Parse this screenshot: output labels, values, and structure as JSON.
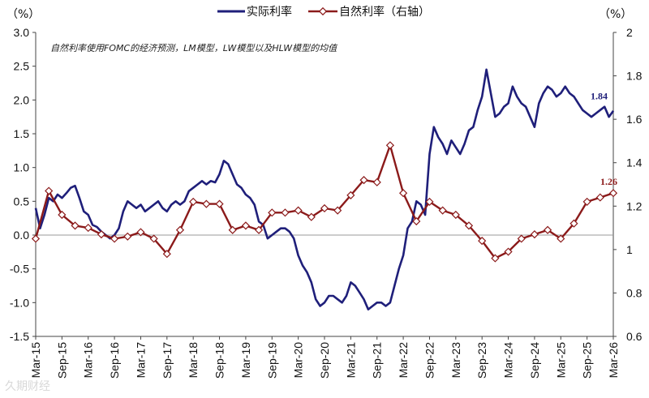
{
  "chart_data": {
    "type": "line",
    "left_unit": "（%）",
    "right_unit": "（%）",
    "note": "自然利率使用FOMC的经济预测，LM模型，LW模型以及HLW模型的均值",
    "x_ticks": [
      "Mar-15",
      "Sep-15",
      "Mar-16",
      "Sep-16",
      "Mar-17",
      "Sep-17",
      "Mar-18",
      "Sep-18",
      "Mar-19",
      "Sep-19",
      "Mar-20",
      "Sep-20",
      "Mar-21",
      "Sep-21",
      "Mar-22",
      "Sep-22",
      "Mar-23",
      "Sep-23",
      "Mar-24",
      "Sep-24",
      "Mar-25",
      "Sep-25",
      "Mar-26"
    ],
    "y_left": {
      "min": -1.5,
      "max": 3.0,
      "ticks": [
        "-1.5",
        "-1.0",
        "-0.5",
        "0.0",
        "0.5",
        "1.0",
        "1.5",
        "2.0",
        "2.5",
        "3.0"
      ],
      "negative_color": "#c00000"
    },
    "y_right": {
      "min": 0.6,
      "max": 2.0,
      "ticks": [
        "0.6",
        "0.8",
        "1",
        "1.2",
        "1.4",
        "1.6",
        "1.8",
        "2"
      ]
    },
    "grid": false,
    "legend_position": "top-center",
    "series": [
      {
        "name": "实际利率",
        "axis": "left",
        "color": "#1f1f7a",
        "end_label": "1.84",
        "points": [
          [
            "Mar-15",
            0.4
          ],
          [
            "Apr-15",
            0.1
          ],
          [
            "May-15",
            0.3
          ],
          [
            "Jun-15",
            0.55
          ],
          [
            "Jul-15",
            0.5
          ],
          [
            "Aug-15",
            0.6
          ],
          [
            "Sep-15",
            0.55
          ],
          [
            "Oct-15",
            0.62
          ],
          [
            "Nov-15",
            0.7
          ],
          [
            "Dec-15",
            0.73
          ],
          [
            "Jan-16",
            0.55
          ],
          [
            "Feb-16",
            0.35
          ],
          [
            "Mar-16",
            0.3
          ],
          [
            "Apr-16",
            0.15
          ],
          [
            "May-16",
            0.12
          ],
          [
            "Jun-16",
            0.05
          ],
          [
            "Jul-16",
            0.0
          ],
          [
            "Aug-16",
            -0.05
          ],
          [
            "Sep-16",
            0.0
          ],
          [
            "Oct-16",
            0.1
          ],
          [
            "Nov-16",
            0.35
          ],
          [
            "Dec-16",
            0.5
          ],
          [
            "Jan-17",
            0.45
          ],
          [
            "Feb-17",
            0.4
          ],
          [
            "Mar-17",
            0.45
          ],
          [
            "Apr-17",
            0.35
          ],
          [
            "May-17",
            0.4
          ],
          [
            "Jun-17",
            0.45
          ],
          [
            "Jul-17",
            0.5
          ],
          [
            "Aug-17",
            0.4
          ],
          [
            "Sep-17",
            0.35
          ],
          [
            "Oct-17",
            0.45
          ],
          [
            "Nov-17",
            0.5
          ],
          [
            "Dec-17",
            0.45
          ],
          [
            "Jan-18",
            0.5
          ],
          [
            "Feb-18",
            0.65
          ],
          [
            "Mar-18",
            0.7
          ],
          [
            "Apr-18",
            0.75
          ],
          [
            "May-18",
            0.8
          ],
          [
            "Jun-18",
            0.75
          ],
          [
            "Jul-18",
            0.8
          ],
          [
            "Aug-18",
            0.78
          ],
          [
            "Sep-18",
            0.9
          ],
          [
            "Oct-18",
            1.1
          ],
          [
            "Nov-18",
            1.05
          ],
          [
            "Dec-18",
            0.9
          ],
          [
            "Jan-19",
            0.75
          ],
          [
            "Feb-19",
            0.7
          ],
          [
            "Mar-19",
            0.6
          ],
          [
            "Apr-19",
            0.55
          ],
          [
            "May-19",
            0.45
          ],
          [
            "Jun-19",
            0.2
          ],
          [
            "Jul-19",
            0.15
          ],
          [
            "Aug-19",
            -0.05
          ],
          [
            "Sep-19",
            0.0
          ],
          [
            "Oct-19",
            0.05
          ],
          [
            "Nov-19",
            0.1
          ],
          [
            "Dec-19",
            0.1
          ],
          [
            "Jan-20",
            0.05
          ],
          [
            "Feb-20",
            -0.05
          ],
          [
            "Mar-20",
            -0.3
          ],
          [
            "Apr-20",
            -0.45
          ],
          [
            "May-20",
            -0.55
          ],
          [
            "Jun-20",
            -0.7
          ],
          [
            "Jul-20",
            -0.95
          ],
          [
            "Aug-20",
            -1.05
          ],
          [
            "Sep-20",
            -1.0
          ],
          [
            "Oct-20",
            -0.9
          ],
          [
            "Nov-20",
            -0.9
          ],
          [
            "Dec-20",
            -0.95
          ],
          [
            "Jan-21",
            -1.0
          ],
          [
            "Feb-21",
            -0.9
          ],
          [
            "Mar-21",
            -0.7
          ],
          [
            "Apr-21",
            -0.75
          ],
          [
            "May-21",
            -0.85
          ],
          [
            "Jun-21",
            -0.95
          ],
          [
            "Jul-21",
            -1.1
          ],
          [
            "Aug-21",
            -1.05
          ],
          [
            "Sep-21",
            -1.0
          ],
          [
            "Oct-21",
            -1.0
          ],
          [
            "Nov-21",
            -1.05
          ],
          [
            "Dec-21",
            -1.0
          ],
          [
            "Jan-22",
            -0.75
          ],
          [
            "Feb-22",
            -0.5
          ],
          [
            "Mar-22",
            -0.3
          ],
          [
            "Apr-22",
            0.1
          ],
          [
            "May-22",
            0.2
          ],
          [
            "Jun-22",
            0.5
          ],
          [
            "Jul-22",
            0.45
          ],
          [
            "Aug-22",
            0.3
          ],
          [
            "Sep-22",
            1.2
          ],
          [
            "Oct-22",
            1.6
          ],
          [
            "Nov-22",
            1.45
          ],
          [
            "Dec-22",
            1.35
          ],
          [
            "Jan-23",
            1.2
          ],
          [
            "Feb-23",
            1.4
          ],
          [
            "Mar-23",
            1.3
          ],
          [
            "Apr-23",
            1.2
          ],
          [
            "May-23",
            1.35
          ],
          [
            "Jun-23",
            1.55
          ],
          [
            "Jul-23",
            1.6
          ],
          [
            "Aug-23",
            1.85
          ],
          [
            "Sep-23",
            2.05
          ],
          [
            "Oct-23",
            2.45
          ],
          [
            "Nov-23",
            2.1
          ],
          [
            "Dec-23",
            1.75
          ],
          [
            "Jan-24",
            1.8
          ],
          [
            "Feb-24",
            1.9
          ],
          [
            "Mar-24",
            1.95
          ],
          [
            "Apr-24",
            2.2
          ],
          [
            "May-24",
            2.05
          ],
          [
            "Jun-24",
            1.95
          ],
          [
            "Jul-24",
            1.9
          ],
          [
            "Aug-24",
            1.75
          ],
          [
            "Sep-24",
            1.6
          ],
          [
            "Oct-24",
            1.95
          ],
          [
            "Nov-24",
            2.1
          ],
          [
            "Dec-24",
            2.2
          ],
          [
            "Jan-25",
            2.15
          ],
          [
            "Feb-25",
            2.05
          ],
          [
            "Mar-25",
            2.1
          ],
          [
            "Apr-25",
            2.2
          ],
          [
            "May-25",
            2.1
          ],
          [
            "Jun-25",
            2.05
          ],
          [
            "Jul-25",
            1.95
          ],
          [
            "Aug-25",
            1.85
          ],
          [
            "Sep-25",
            1.8
          ],
          [
            "Oct-25",
            1.75
          ],
          [
            "Nov-25",
            1.8
          ],
          [
            "Dec-25",
            1.85
          ],
          [
            "Jan-26",
            1.9
          ],
          [
            "Feb-26",
            1.75
          ],
          [
            "Mar-26",
            1.84
          ]
        ]
      },
      {
        "name": "自然利率（右轴）",
        "axis": "right",
        "color": "#8b1a1a",
        "marker": "diamond",
        "end_label": "1.26",
        "points": [
          [
            "Mar-15",
            1.05
          ],
          [
            "Jun-15",
            1.27
          ],
          [
            "Sep-15",
            1.16
          ],
          [
            "Dec-15",
            1.11
          ],
          [
            "Mar-16",
            1.1
          ],
          [
            "Jun-16",
            1.07
          ],
          [
            "Sep-16",
            1.05
          ],
          [
            "Dec-16",
            1.06
          ],
          [
            "Mar-17",
            1.08
          ],
          [
            "Jun-17",
            1.05
          ],
          [
            "Sep-17",
            0.98
          ],
          [
            "Dec-17",
            1.09
          ],
          [
            "Mar-18",
            1.22
          ],
          [
            "Jun-18",
            1.21
          ],
          [
            "Sep-18",
            1.21
          ],
          [
            "Dec-18",
            1.09
          ],
          [
            "Mar-19",
            1.11
          ],
          [
            "Jun-19",
            1.09
          ],
          [
            "Sep-19",
            1.17
          ],
          [
            "Dec-19",
            1.17
          ],
          [
            "Mar-20",
            1.18
          ],
          [
            "Jun-20",
            1.15
          ],
          [
            "Sep-20",
            1.19
          ],
          [
            "Dec-20",
            1.18
          ],
          [
            "Mar-21",
            1.25
          ],
          [
            "Jun-21",
            1.32
          ],
          [
            "Sep-21",
            1.31
          ],
          [
            "Dec-21",
            1.48
          ],
          [
            "Mar-22",
            1.26
          ],
          [
            "Jun-22",
            1.13
          ],
          [
            "Sep-22",
            1.22
          ],
          [
            "Dec-22",
            1.18
          ],
          [
            "Mar-23",
            1.16
          ],
          [
            "Jun-23",
            1.11
          ],
          [
            "Sep-23",
            1.04
          ],
          [
            "Dec-23",
            0.96
          ],
          [
            "Mar-24",
            0.99
          ],
          [
            "Jun-24",
            1.05
          ],
          [
            "Sep-24",
            1.07
          ],
          [
            "Dec-24",
            1.09
          ],
          [
            "Mar-25",
            1.05
          ],
          [
            "Jun-25",
            1.12
          ],
          [
            "Sep-25",
            1.22
          ],
          [
            "Dec-25",
            1.24
          ],
          [
            "Mar-26",
            1.26
          ]
        ]
      }
    ]
  },
  "watermark": "久期财经"
}
